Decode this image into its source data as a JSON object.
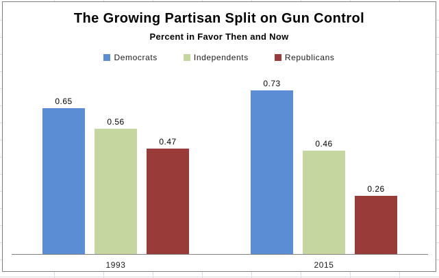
{
  "chart": {
    "title": "The Growing Partisan Split on Gun Control",
    "subtitle": "Percent in Favor Then and Now",
    "border_color": "#7f7f7f",
    "axis_color": "#808080",
    "background_color": "#ffffff",
    "gridline_color": "#d8dbe0"
  },
  "chart_data": {
    "type": "bar",
    "title": "The Growing Partisan Split on Gun Control",
    "subtitle": "Percent in Favor Then and Now",
    "categories": [
      "1993",
      "2015"
    ],
    "series": [
      {
        "name": "Democrats",
        "color": "#5B8DD4",
        "values": [
          0.65,
          0.73
        ]
      },
      {
        "name": "Independents",
        "color": "#C5D79E",
        "values": [
          0.56,
          0.46
        ]
      },
      {
        "name": "Republicans",
        "color": "#993B38",
        "values": [
          0.47,
          0.26
        ]
      }
    ],
    "value_labels": [
      "0.65",
      "0.56",
      "0.47",
      "0.73",
      "0.46",
      "0.26"
    ],
    "ylim": [
      0,
      0.8
    ],
    "grid": false,
    "legend_position": "top-center",
    "xlabel": "",
    "ylabel": ""
  }
}
